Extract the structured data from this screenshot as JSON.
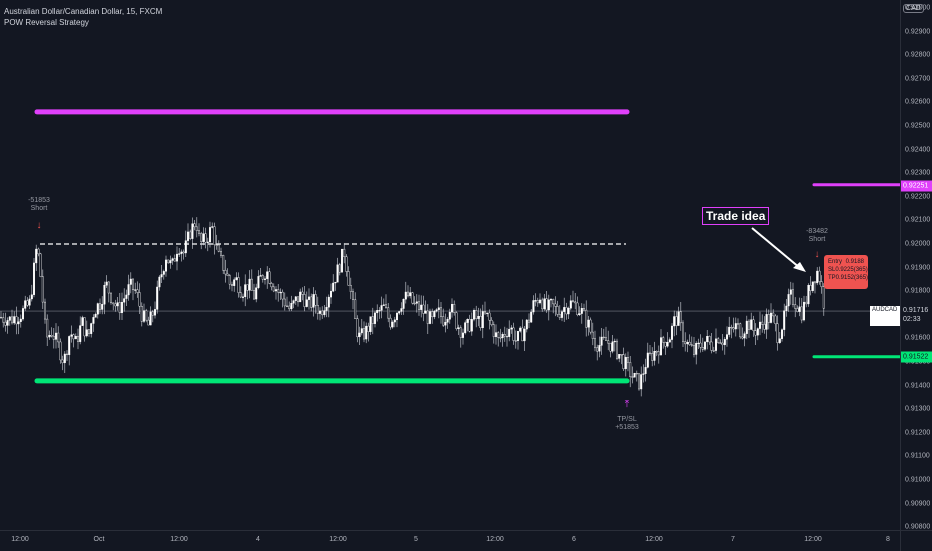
{
  "legend": {
    "symbol": "Australian Dollar/Canadian Dollar, 15, FXCM",
    "strategy": "POW Reversal Strategy"
  },
  "currency": "CAD",
  "price_axis": {
    "ticks": [
      "0.93000",
      "0.92900",
      "0.92800",
      "0.92700",
      "0.92600",
      "0.92500",
      "0.92400",
      "0.92300",
      "0.92200",
      "0.92100",
      "0.92000",
      "0.91900",
      "0.91800",
      "0.91600",
      "0.91500",
      "0.91400",
      "0.91300",
      "0.91200",
      "0.91100",
      "0.91000",
      "0.90900",
      "0.90800"
    ]
  },
  "time_axis": {
    "ticks": [
      "12:00",
      "Oct",
      "12:00",
      "4",
      "12:00",
      "5",
      "12:00",
      "6",
      "12:00",
      "7",
      "12:00",
      "8"
    ]
  },
  "price_tags": {
    "current_symbol": "AUDCAD",
    "current_price": "0.91716",
    "countdown": "02:33",
    "target_high": "0.92251",
    "target_low": "0.91522"
  },
  "signals": {
    "left_short": {
      "label1": "-51853",
      "label2": "Short"
    },
    "tpsl": {
      "label1": "TP/SL",
      "label2": "+51853"
    },
    "right_short": {
      "label1": "-83482",
      "label2": "Short"
    }
  },
  "annotation": {
    "text": "Trade idea"
  },
  "info_box": {
    "entry_label": "Entry",
    "entry_value": "0.9188",
    "sl_label": "SL",
    "sl_value": "0.9225",
    "sl_pips": "(365)",
    "tp_label": "TP",
    "tp_value": "0.9152",
    "tp_pips": "(365)"
  },
  "colors": {
    "background": "#131722",
    "magenta": "#e040fb",
    "green": "#00e676",
    "red": "#ef5350"
  },
  "chart_data": {
    "type": "candlestick",
    "symbol": "AUDCAD",
    "timeframe": "15",
    "ylim": [
      0.908,
      0.9305
    ],
    "close_path": [
      [
        0,
        0.9169
      ],
      [
        10,
        0.9168
      ],
      [
        20,
        0.917
      ],
      [
        30,
        0.9175
      ],
      [
        37,
        0.92
      ],
      [
        41,
        0.9185
      ],
      [
        46,
        0.916
      ],
      [
        52,
        0.9163
      ],
      [
        58,
        0.9157
      ],
      [
        64,
        0.915
      ],
      [
        70,
        0.9163
      ],
      [
        76,
        0.9158
      ],
      [
        82,
        0.9167
      ],
      [
        88,
        0.916
      ],
      [
        94,
        0.9172
      ],
      [
        100,
        0.9175
      ],
      [
        106,
        0.9183
      ],
      [
        112,
        0.9177
      ],
      [
        118,
        0.9172
      ],
      [
        124,
        0.9177
      ],
      [
        130,
        0.9182
      ],
      [
        136,
        0.918
      ],
      [
        142,
        0.917
      ],
      [
        148,
        0.9165
      ],
      [
        154,
        0.9172
      ],
      [
        160,
        0.9185
      ],
      [
        166,
        0.9195
      ],
      [
        172,
        0.919
      ],
      [
        178,
        0.92
      ],
      [
        184,
        0.9196
      ],
      [
        190,
        0.9205
      ],
      [
        196,
        0.921
      ],
      [
        200,
        0.92
      ],
      [
        206,
        0.9202
      ],
      [
        212,
        0.9207
      ],
      [
        218,
        0.9195
      ],
      [
        224,
        0.919
      ],
      [
        230,
        0.9183
      ],
      [
        236,
        0.9185
      ],
      [
        242,
        0.918
      ],
      [
        248,
        0.9183
      ],
      [
        254,
        0.9178
      ],
      [
        260,
        0.9185
      ],
      [
        266,
        0.9189
      ],
      [
        272,
        0.9184
      ],
      [
        278,
        0.918
      ],
      [
        284,
        0.9176
      ],
      [
        290,
        0.9172
      ],
      [
        296,
        0.9176
      ],
      [
        302,
        0.9179
      ],
      [
        308,
        0.9174
      ],
      [
        314,
        0.9176
      ],
      [
        320,
        0.9171
      ],
      [
        326,
        0.9176
      ],
      [
        332,
        0.9183
      ],
      [
        338,
        0.9189
      ],
      [
        344,
        0.9197
      ],
      [
        348,
        0.9187
      ],
      [
        352,
        0.9176
      ],
      [
        356,
        0.9165
      ],
      [
        360,
        0.916
      ],
      [
        366,
        0.9163
      ],
      [
        372,
        0.9167
      ],
      [
        378,
        0.9171
      ],
      [
        384,
        0.9173
      ],
      [
        390,
        0.9167
      ],
      [
        396,
        0.9171
      ],
      [
        402,
        0.9176
      ],
      [
        408,
        0.9178
      ],
      [
        414,
        0.9174
      ],
      [
        420,
        0.9173
      ],
      [
        426,
        0.917
      ],
      [
        432,
        0.9167
      ],
      [
        438,
        0.9171
      ],
      [
        444,
        0.9168
      ],
      [
        450,
        0.9174
      ],
      [
        456,
        0.9167
      ],
      [
        462,
        0.9163
      ],
      [
        468,
        0.9165
      ],
      [
        474,
        0.9169
      ],
      [
        480,
        0.9167
      ],
      [
        486,
        0.917
      ],
      [
        492,
        0.9165
      ],
      [
        498,
        0.9159
      ],
      [
        504,
        0.9162
      ],
      [
        510,
        0.9165
      ],
      [
        516,
        0.9159
      ],
      [
        522,
        0.9162
      ],
      [
        528,
        0.9167
      ],
      [
        534,
        0.9175
      ],
      [
        540,
        0.9178
      ],
      [
        546,
        0.9172
      ],
      [
        552,
        0.9174
      ],
      [
        558,
        0.9171
      ],
      [
        564,
        0.9173
      ],
      [
        570,
        0.9175
      ],
      [
        576,
        0.9174
      ],
      [
        582,
        0.9171
      ],
      [
        588,
        0.9166
      ],
      [
        594,
        0.9159
      ],
      [
        600,
        0.9157
      ],
      [
        606,
        0.9159
      ],
      [
        612,
        0.9157
      ],
      [
        618,
        0.9154
      ],
      [
        624,
        0.915
      ],
      [
        628,
        0.9147
      ],
      [
        634,
        0.9143
      ],
      [
        640,
        0.9141
      ],
      [
        646,
        0.915
      ],
      [
        652,
        0.9153
      ],
      [
        658,
        0.9156
      ],
      [
        664,
        0.9159
      ],
      [
        670,
        0.9161
      ],
      [
        674,
        0.9167
      ],
      [
        678,
        0.9169
      ],
      [
        682,
        0.9162
      ],
      [
        688,
        0.9157
      ],
      [
        694,
        0.9154
      ],
      [
        700,
        0.9157
      ],
      [
        706,
        0.9159
      ],
      [
        712,
        0.9157
      ],
      [
        718,
        0.9161
      ],
      [
        724,
        0.9159
      ],
      [
        730,
        0.9163
      ],
      [
        736,
        0.9165
      ],
      [
        742,
        0.9163
      ],
      [
        748,
        0.9167
      ],
      [
        754,
        0.9163
      ],
      [
        760,
        0.9165
      ],
      [
        766,
        0.9168
      ],
      [
        772,
        0.9169
      ],
      [
        778,
        0.9161
      ],
      [
        784,
        0.9168
      ],
      [
        790,
        0.9178
      ],
      [
        796,
        0.9175
      ],
      [
        802,
        0.9171
      ],
      [
        806,
        0.9176
      ],
      [
        810,
        0.9182
      ],
      [
        814,
        0.9186
      ],
      [
        818,
        0.9189
      ],
      [
        822,
        0.918
      ],
      [
        824,
        0.9175
      ]
    ],
    "levels": [
      {
        "name": "upper-target",
        "price": 0.9256,
        "color": "#e040fb"
      },
      {
        "name": "entry",
        "price": 0.92,
        "color": "#ffffff",
        "style": "dashed"
      },
      {
        "name": "lower-target",
        "price": 0.9142,
        "color": "#00e676"
      },
      {
        "name": "right-sl",
        "price": 0.92251,
        "color": "#e040fb"
      },
      {
        "name": "right-tp",
        "price": 0.91522,
        "color": "#00e676"
      },
      {
        "name": "current",
        "price": 0.91716,
        "color": "#787b86"
      }
    ]
  }
}
